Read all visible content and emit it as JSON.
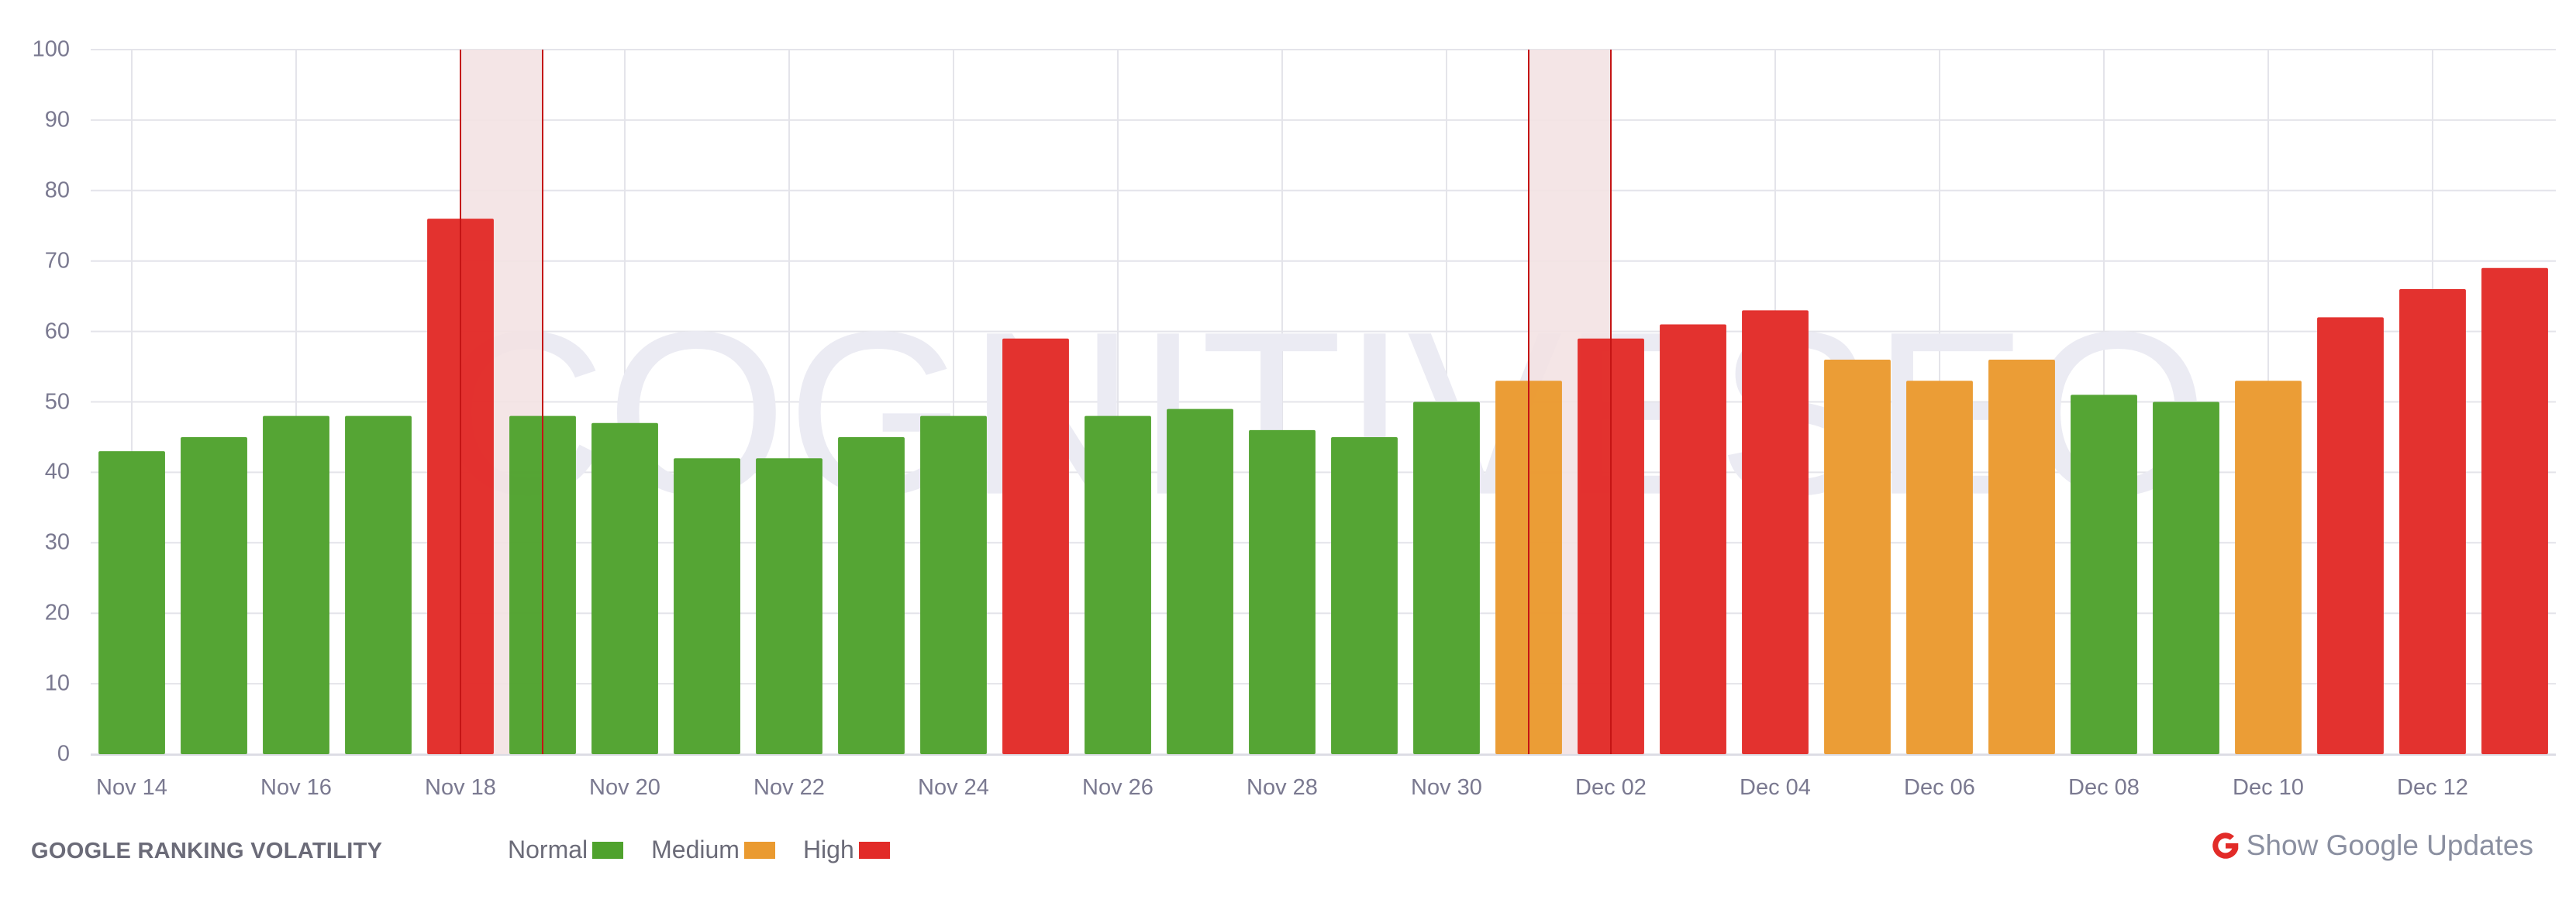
{
  "chart_data": {
    "type": "bar",
    "title": "Google Ranking Volatility",
    "xlabel": "",
    "ylabel": "",
    "ylim": [
      0,
      100
    ],
    "yticks": [
      0,
      10,
      20,
      30,
      40,
      50,
      60,
      70,
      80,
      90,
      100
    ],
    "grid": true,
    "legend_position": "bottom-left",
    "watermark": "COGNITIVESEO",
    "categories": [
      "Nov 14",
      "Nov 15",
      "Nov 16",
      "Nov 17",
      "Nov 18",
      "Nov 19",
      "Nov 20",
      "Nov 21",
      "Nov 22",
      "Nov 23",
      "Nov 24",
      "Nov 25",
      "Nov 26",
      "Nov 27",
      "Nov 28",
      "Nov 29",
      "Nov 30",
      "Dec 01",
      "Dec 02",
      "Dec 03",
      "Dec 04",
      "Dec 05",
      "Dec 06",
      "Dec 07",
      "Dec 08",
      "Dec 09",
      "Dec 10",
      "Dec 11",
      "Dec 12",
      "Dec 13"
    ],
    "xtick_labels": [
      "Nov 14",
      "Nov 16",
      "Nov 18",
      "Nov 20",
      "Nov 22",
      "Nov 24",
      "Nov 26",
      "Nov 28",
      "Nov 30",
      "Dec 02",
      "Dec 04",
      "Dec 06",
      "Dec 08",
      "Dec 10",
      "Dec 12"
    ],
    "values": [
      43,
      45,
      48,
      48,
      76,
      48,
      47,
      42,
      42,
      45,
      48,
      59,
      48,
      49,
      46,
      45,
      50,
      53,
      59,
      61,
      63,
      56,
      53,
      56,
      51,
      50,
      53,
      62,
      66,
      69
    ],
    "levels": [
      "normal",
      "normal",
      "normal",
      "normal",
      "high",
      "normal",
      "normal",
      "normal",
      "normal",
      "normal",
      "normal",
      "high",
      "normal",
      "normal",
      "normal",
      "normal",
      "normal",
      "medium",
      "high",
      "high",
      "high",
      "medium",
      "medium",
      "medium",
      "normal",
      "normal",
      "medium",
      "high",
      "high",
      "high"
    ],
    "legend": [
      {
        "key": "normal",
        "label": "Normal",
        "color": "#4fa22d"
      },
      {
        "key": "medium",
        "label": "Medium",
        "color": "#ea9a30"
      },
      {
        "key": "high",
        "label": "High",
        "color": "#e22b28"
      }
    ],
    "google_update_bands": [
      {
        "from": "Nov 18",
        "to": "Nov 19"
      },
      {
        "from": "Dec 01",
        "to": "Dec 02"
      }
    ]
  },
  "footer": {
    "title": "GOOGLE RANKING VOLATILITY",
    "legend": {
      "normal": "Normal",
      "medium": "Medium",
      "high": "High"
    },
    "updates_button": "Show Google Updates"
  },
  "colors": {
    "normal": "#4fa22d",
    "medium": "#ea9a30",
    "high": "#e22b28",
    "band_fill": "#f3e2e3",
    "band_line": "#c41414",
    "grid": "#e4e4ea",
    "axis_text": "#7a7990",
    "watermark": "#ebebf3"
  }
}
